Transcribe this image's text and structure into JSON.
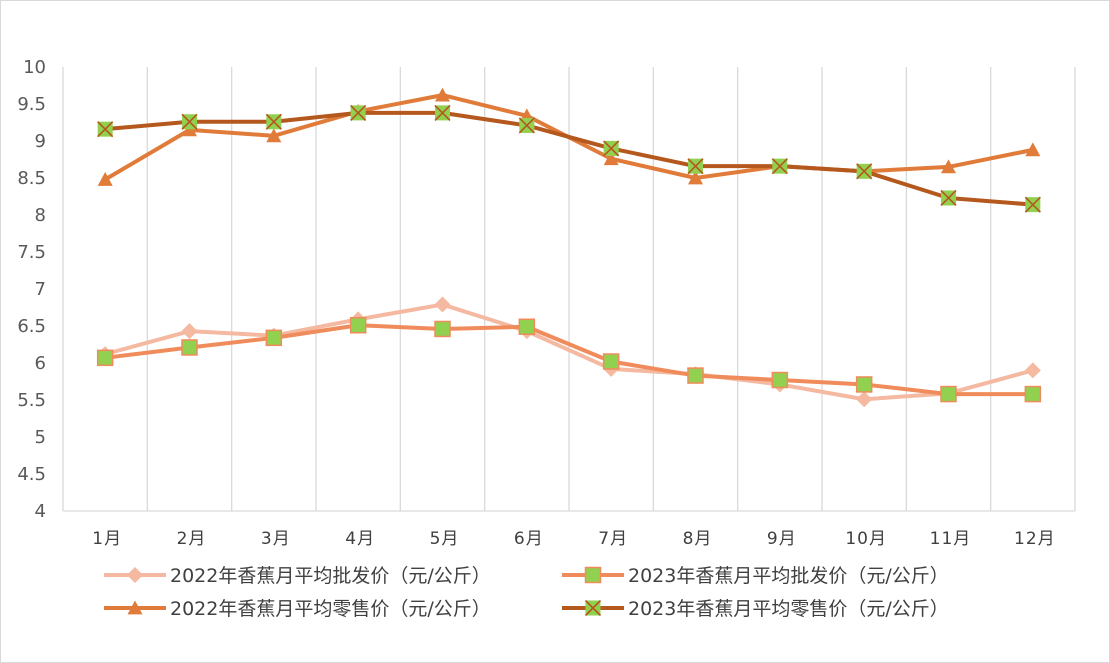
{
  "chart_data": {
    "type": "line",
    "categories": [
      "1月",
      "2月",
      "3月",
      "4月",
      "5月",
      "6月",
      "7月",
      "8月",
      "9月",
      "10月",
      "11月",
      "12月"
    ],
    "ylim": [
      4,
      10
    ],
    "yticks": [
      "4",
      "4.5",
      "5",
      "5.5",
      "6",
      "6.5",
      "7",
      "7.5",
      "8",
      "8.5",
      "9",
      "9.5",
      "10"
    ],
    "grid": "vertical",
    "legend_position": "bottom",
    "series": [
      {
        "name": "2022年香蕉月平均批发价（元/公斤）",
        "marker": "diamond",
        "color": "#F4B9A0",
        "values": [
          6.12,
          6.43,
          6.37,
          6.59,
          6.79,
          6.43,
          5.92,
          5.85,
          5.71,
          5.51,
          5.59,
          5.9
        ]
      },
      {
        "name": "2023年香蕉月平均批发价（元/公斤）",
        "marker": "square",
        "color": "#F08C5C",
        "marker_fill": "#92D050",
        "values": [
          6.07,
          6.21,
          6.34,
          6.51,
          6.46,
          6.49,
          6.02,
          5.83,
          5.77,
          5.71,
          5.58,
          5.58
        ]
      },
      {
        "name": "2022年香蕉月平均零售价（元/公斤）",
        "marker": "triangle",
        "color": "#E07B39",
        "values": [
          8.48,
          9.15,
          9.07,
          9.4,
          9.62,
          9.34,
          8.76,
          8.5,
          8.66,
          8.59,
          8.65,
          8.88
        ]
      },
      {
        "name": "2023年香蕉月平均零售价（元/公斤）",
        "marker": "x",
        "color": "#B4581E",
        "marker_fill": "#92D050",
        "values": [
          9.16,
          9.26,
          9.26,
          9.38,
          9.38,
          9.21,
          8.9,
          8.66,
          8.66,
          8.59,
          8.23,
          8.14
        ]
      }
    ]
  }
}
